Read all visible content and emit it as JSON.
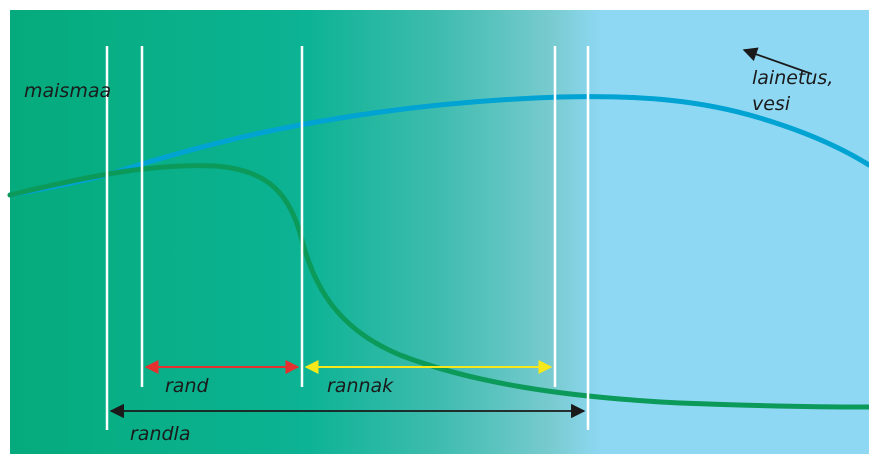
{
  "labels": {
    "maismaa": "maismaa",
    "lainetus_line1": "lainetus,",
    "lainetus_line2": "vesi",
    "rand": "rand",
    "rannak": "rannak",
    "randla": "randla"
  },
  "colors": {
    "land": "#05ab7c",
    "land_mid": "#0cb394",
    "water": "#8fd8f4",
    "land_curve": "#0c9a5b",
    "water_curve": "#00a3d2",
    "boundary_lines": "#ffffff",
    "rand_arrow": "#e53030",
    "rannak_arrow": "#f6e81a",
    "randla_arrow": "#1a1a1a",
    "wave_arrow": "#1a1a1a"
  }
}
